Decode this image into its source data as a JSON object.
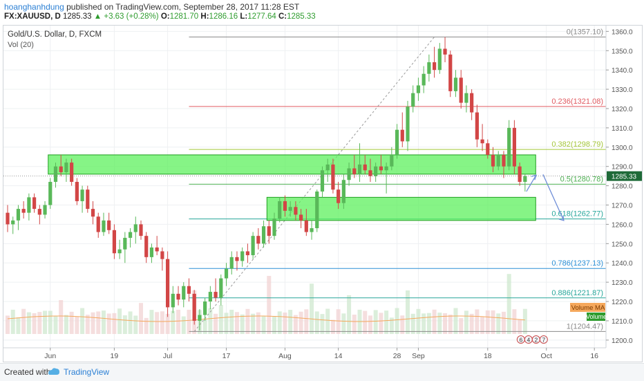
{
  "header": {
    "author": "hoanghanhdung",
    "published": "published on TradingView.com, September 28, 2017 11:28 EST",
    "symbol": "FX:XAUUSD, D",
    "last": "1285.33",
    "change": "+3.63 (+0.28%)",
    "o_label": "O:",
    "o": "1281.70",
    "h_label": "H:",
    "h": "1286.16",
    "l_label": "L:",
    "l": "1277.64",
    "c_label": "C:",
    "c": "1285.33"
  },
  "footer": {
    "created": "Created with",
    "brand": "TradingView"
  },
  "colors": {
    "up": "#59b859",
    "down": "#d24646",
    "grid": "#eef0f2",
    "zone": "#5ef05e",
    "zone_border": "#1f9e1f",
    "volume_ma": "#f5a85c",
    "arrow": "#6f8ed8"
  },
  "chart_data": {
    "type": "candlestick",
    "title": "Gold/U.S. Dollar, D, FXCM",
    "volume_label": "Vol (20)",
    "ylim": [
      1196,
      1363
    ],
    "y_ticks": [
      1200,
      1210,
      1220,
      1230,
      1240,
      1250,
      1260,
      1270,
      1280,
      1290,
      1300,
      1310,
      1320,
      1330,
      1340,
      1350,
      1360
    ],
    "x_ticks": [
      {
        "i": 8,
        "label": "Jun"
      },
      {
        "i": 20,
        "label": "19"
      },
      {
        "i": 30,
        "label": "Jul"
      },
      {
        "i": 41,
        "label": "17"
      },
      {
        "i": 52,
        "label": "Aug"
      },
      {
        "i": 62,
        "label": "14"
      },
      {
        "i": 73,
        "label": "28"
      },
      {
        "i": 77,
        "label": "Sep"
      },
      {
        "i": 90,
        "label": "18"
      },
      {
        "i": 101,
        "label": "Oct"
      },
      {
        "i": 110,
        "label": "16"
      }
    ],
    "price_label": "1285.33",
    "candles": [
      [
        1266,
        1270,
        1256,
        1260
      ],
      [
        1260,
        1264,
        1255,
        1262
      ],
      [
        1262,
        1270,
        1257,
        1268
      ],
      [
        1268,
        1272,
        1263,
        1266
      ],
      [
        1266,
        1276,
        1262,
        1274
      ],
      [
        1274,
        1276,
        1266,
        1268
      ],
      [
        1268,
        1270,
        1260,
        1265
      ],
      [
        1265,
        1272,
        1263,
        1270
      ],
      [
        1270,
        1284,
        1268,
        1282
      ],
      [
        1282,
        1292,
        1279,
        1290
      ],
      [
        1290,
        1296,
        1285,
        1287
      ],
      [
        1287,
        1294,
        1282,
        1292
      ],
      [
        1292,
        1294,
        1280,
        1282
      ],
      [
        1282,
        1284,
        1270,
        1272
      ],
      [
        1272,
        1280,
        1266,
        1278
      ],
      [
        1278,
        1280,
        1266,
        1268
      ],
      [
        1268,
        1272,
        1260,
        1264
      ],
      [
        1264,
        1266,
        1253,
        1256
      ],
      [
        1256,
        1266,
        1254,
        1262
      ],
      [
        1262,
        1266,
        1255,
        1257
      ],
      [
        1257,
        1260,
        1242,
        1245
      ],
      [
        1245,
        1252,
        1242,
        1247
      ],
      [
        1247,
        1256,
        1240,
        1253
      ],
      [
        1253,
        1258,
        1248,
        1256
      ],
      [
        1256,
        1264,
        1250,
        1260
      ],
      [
        1260,
        1262,
        1252,
        1254
      ],
      [
        1254,
        1256,
        1240,
        1243
      ],
      [
        1243,
        1250,
        1240,
        1248
      ],
      [
        1248,
        1254,
        1244,
        1246
      ],
      [
        1246,
        1248,
        1236,
        1242
      ],
      [
        1242,
        1246,
        1212,
        1217
      ],
      [
        1217,
        1228,
        1214,
        1224
      ],
      [
        1224,
        1228,
        1218,
        1221
      ],
      [
        1221,
        1230,
        1217,
        1228
      ],
      [
        1228,
        1232,
        1220,
        1224
      ],
      [
        1224,
        1226,
        1208,
        1210
      ],
      [
        1210,
        1216,
        1205,
        1213
      ],
      [
        1213,
        1222,
        1210,
        1220
      ],
      [
        1220,
        1228,
        1216,
        1225
      ],
      [
        1225,
        1232,
        1220,
        1222
      ],
      [
        1222,
        1234,
        1218,
        1232
      ],
      [
        1232,
        1240,
        1228,
        1237
      ],
      [
        1237,
        1246,
        1234,
        1243
      ],
      [
        1243,
        1246,
        1236,
        1241
      ],
      [
        1241,
        1248,
        1238,
        1246
      ],
      [
        1246,
        1250,
        1240,
        1244
      ],
      [
        1244,
        1256,
        1242,
        1254
      ],
      [
        1254,
        1258,
        1247,
        1250
      ],
      [
        1250,
        1262,
        1248,
        1259
      ],
      [
        1259,
        1262,
        1250,
        1254
      ],
      [
        1254,
        1266,
        1252,
        1263
      ],
      [
        1263,
        1274,
        1261,
        1272
      ],
      [
        1272,
        1275,
        1264,
        1267
      ],
      [
        1267,
        1272,
        1264,
        1269
      ],
      [
        1269,
        1272,
        1262,
        1265
      ],
      [
        1265,
        1268,
        1258,
        1262
      ],
      [
        1262,
        1268,
        1254,
        1256
      ],
      [
        1256,
        1262,
        1252,
        1258
      ],
      [
        1258,
        1278,
        1256,
        1277
      ],
      [
        1277,
        1290,
        1274,
        1288
      ],
      [
        1288,
        1294,
        1282,
        1291
      ],
      [
        1291,
        1294,
        1276,
        1278
      ],
      [
        1278,
        1282,
        1268,
        1271
      ],
      [
        1271,
        1286,
        1268,
        1283
      ],
      [
        1283,
        1292,
        1280,
        1289
      ],
      [
        1289,
        1296,
        1284,
        1286
      ],
      [
        1286,
        1302,
        1282,
        1291
      ],
      [
        1291,
        1296,
        1286,
        1288
      ],
      [
        1288,
        1294,
        1282,
        1285
      ],
      [
        1285,
        1292,
        1282,
        1290
      ],
      [
        1290,
        1296,
        1286,
        1288
      ],
      [
        1288,
        1292,
        1276,
        1290
      ],
      [
        1290,
        1300,
        1288,
        1296
      ],
      [
        1296,
        1312,
        1294,
        1309
      ],
      [
        1309,
        1318,
        1300,
        1303
      ],
      [
        1303,
        1324,
        1298,
        1321
      ],
      [
        1321,
        1332,
        1318,
        1328
      ],
      [
        1328,
        1336,
        1324,
        1332
      ],
      [
        1332,
        1342,
        1328,
        1338
      ],
      [
        1338,
        1348,
        1334,
        1344
      ],
      [
        1344,
        1352,
        1336,
        1340
      ],
      [
        1340,
        1354,
        1338,
        1351
      ],
      [
        1351,
        1357,
        1344,
        1348
      ],
      [
        1348,
        1350,
        1326,
        1329
      ],
      [
        1329,
        1340,
        1326,
        1336
      ],
      [
        1336,
        1340,
        1320,
        1323
      ],
      [
        1323,
        1332,
        1318,
        1328
      ],
      [
        1328,
        1330,
        1314,
        1318
      ],
      [
        1318,
        1322,
        1300,
        1304
      ],
      [
        1304,
        1312,
        1298,
        1302
      ],
      [
        1302,
        1304,
        1294,
        1296
      ],
      [
        1296,
        1300,
        1287,
        1290
      ],
      [
        1290,
        1298,
        1288,
        1296
      ],
      [
        1296,
        1298,
        1284,
        1290
      ],
      [
        1290,
        1314,
        1288,
        1310
      ],
      [
        1310,
        1314,
        1286,
        1290
      ],
      [
        1290,
        1292,
        1280,
        1282
      ],
      [
        1282,
        1286,
        1277,
        1285
      ]
    ],
    "volume": [
      {
        "i": 10,
        "v": 0.35
      },
      {
        "i": 25,
        "v": 0.32
      },
      {
        "i": 35,
        "v": 0.45
      },
      {
        "i": 40,
        "v": 0.3
      },
      {
        "i": 49,
        "v": 0.6
      },
      {
        "i": 57,
        "v": 0.52
      },
      {
        "i": 64,
        "v": 0.4
      },
      {
        "i": 75,
        "v": 0.45
      },
      {
        "i": 94,
        "v": 0.62
      },
      {
        "i": 98,
        "v": 0.32
      }
    ],
    "volume_ma_label": "Volume MA",
    "volume_label_badge": "Volume",
    "fib": [
      {
        "ratio": "0",
        "value": "1357.10",
        "color": "#8a8a8a"
      },
      {
        "ratio": "0.236",
        "value": "1321.08",
        "color": "#e0595f"
      },
      {
        "ratio": "0.382",
        "value": "1298.79",
        "color": "#a4c639"
      },
      {
        "ratio": "0.5",
        "value": "1280.78",
        "color": "#4caf50"
      },
      {
        "ratio": "0.618",
        "value": "1262.77",
        "color": "#26a69a"
      },
      {
        "ratio": "0.786",
        "value": "1237.13",
        "color": "#2a8fd6"
      },
      {
        "ratio": "0.886",
        "value": "1221.87",
        "color": "#26a69a"
      },
      {
        "ratio": "1",
        "value": "1204.47",
        "color": "#8a8a8a"
      }
    ],
    "zones": [
      {
        "from": 8,
        "to": 99,
        "low": 1286,
        "high": 1296
      },
      {
        "from": 49,
        "to": 99,
        "low": 1262,
        "high": 1274
      }
    ],
    "event_icons": [
      "6",
      "4",
      "2",
      "7"
    ]
  }
}
